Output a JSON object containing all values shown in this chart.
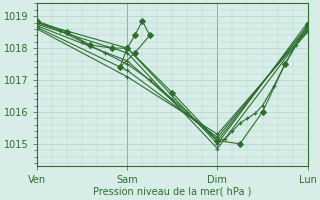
{
  "bg_color": "#d8ede8",
  "grid_color": "#b0d4cc",
  "line_color": "#2d6e2d",
  "xlabel": "Pression niveau de la mer( hPa )",
  "xtick_labels": [
    "Ven",
    "Sam",
    "Dim",
    "Lun"
  ],
  "ytick_values": [
    1015,
    1016,
    1017,
    1018,
    1019
  ],
  "ylim": [
    1014.3,
    1019.4
  ],
  "xlim": [
    0,
    72
  ],
  "xtick_positions": [
    0,
    24,
    48,
    72
  ],
  "series": [
    {
      "x": [
        0,
        24,
        48,
        72
      ],
      "y": [
        1018.8,
        1018.0,
        1015.0,
        1018.8
      ],
      "marker": "+"
    },
    {
      "x": [
        0,
        24,
        48,
        72
      ],
      "y": [
        1018.75,
        1017.85,
        1014.85,
        1018.6
      ],
      "marker": "+"
    },
    {
      "x": [
        0,
        24,
        48,
        72
      ],
      "y": [
        1018.7,
        1017.6,
        1015.1,
        1018.7
      ],
      "marker": "+"
    },
    {
      "x": [
        0,
        24,
        48,
        72
      ],
      "y": [
        1018.65,
        1017.3,
        1015.2,
        1018.65
      ],
      "marker": "+"
    },
    {
      "x": [
        0,
        24,
        48,
        72
      ],
      "y": [
        1018.6,
        1017.1,
        1015.3,
        1018.55
      ],
      "marker": "+"
    },
    {
      "x": [
        0,
        8,
        14,
        20,
        24,
        26,
        28,
        30,
        26,
        22,
        24,
        36,
        48,
        54,
        60,
        66,
        72
      ],
      "y": [
        1018.85,
        1018.5,
        1018.1,
        1018.0,
        1018.0,
        1018.4,
        1018.85,
        1018.4,
        1017.85,
        1017.4,
        1018.0,
        1016.6,
        1015.1,
        1015.0,
        1016.0,
        1017.5,
        1018.75
      ],
      "marker": "D"
    },
    {
      "x": [
        0,
        6,
        12,
        18,
        24,
        30,
        36,
        40,
        42,
        44,
        46,
        48,
        50,
        52,
        54,
        56,
        58,
        60,
        63,
        66,
        69,
        72
      ],
      "y": [
        1018.8,
        1018.55,
        1018.2,
        1017.85,
        1017.5,
        1017.0,
        1016.4,
        1016.0,
        1015.75,
        1015.55,
        1015.35,
        1015.1,
        1015.15,
        1015.4,
        1015.65,
        1015.8,
        1015.95,
        1016.2,
        1016.8,
        1017.5,
        1018.1,
        1018.5
      ],
      "marker": "+"
    }
  ],
  "minor_yticks": 5,
  "minor_xticks": 6
}
